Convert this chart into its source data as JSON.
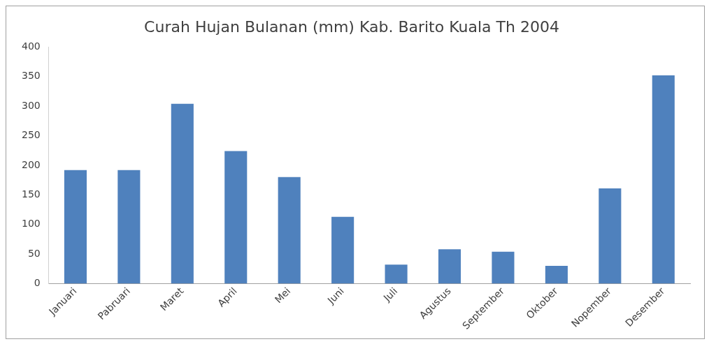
{
  "chart_data": {
    "type": "bar",
    "title": "Curah Hujan Bulanan (mm) Kab. Barito Kuala Th 2004",
    "categories": [
      "Januari",
      "Pabruari",
      "Maret",
      "April",
      "Mei",
      "Juni",
      "Juli",
      "Agustus",
      "September",
      "Oktober",
      "Nopember",
      "Desember"
    ],
    "values": [
      192,
      192,
      304,
      224,
      180,
      113,
      32,
      58,
      54,
      30,
      161,
      352
    ],
    "color": "#4f81bd",
    "ylim": [
      0,
      400
    ],
    "yticks": [
      0,
      50,
      100,
      150,
      200,
      250,
      300,
      350,
      400
    ],
    "grid": false,
    "legend": false
  }
}
